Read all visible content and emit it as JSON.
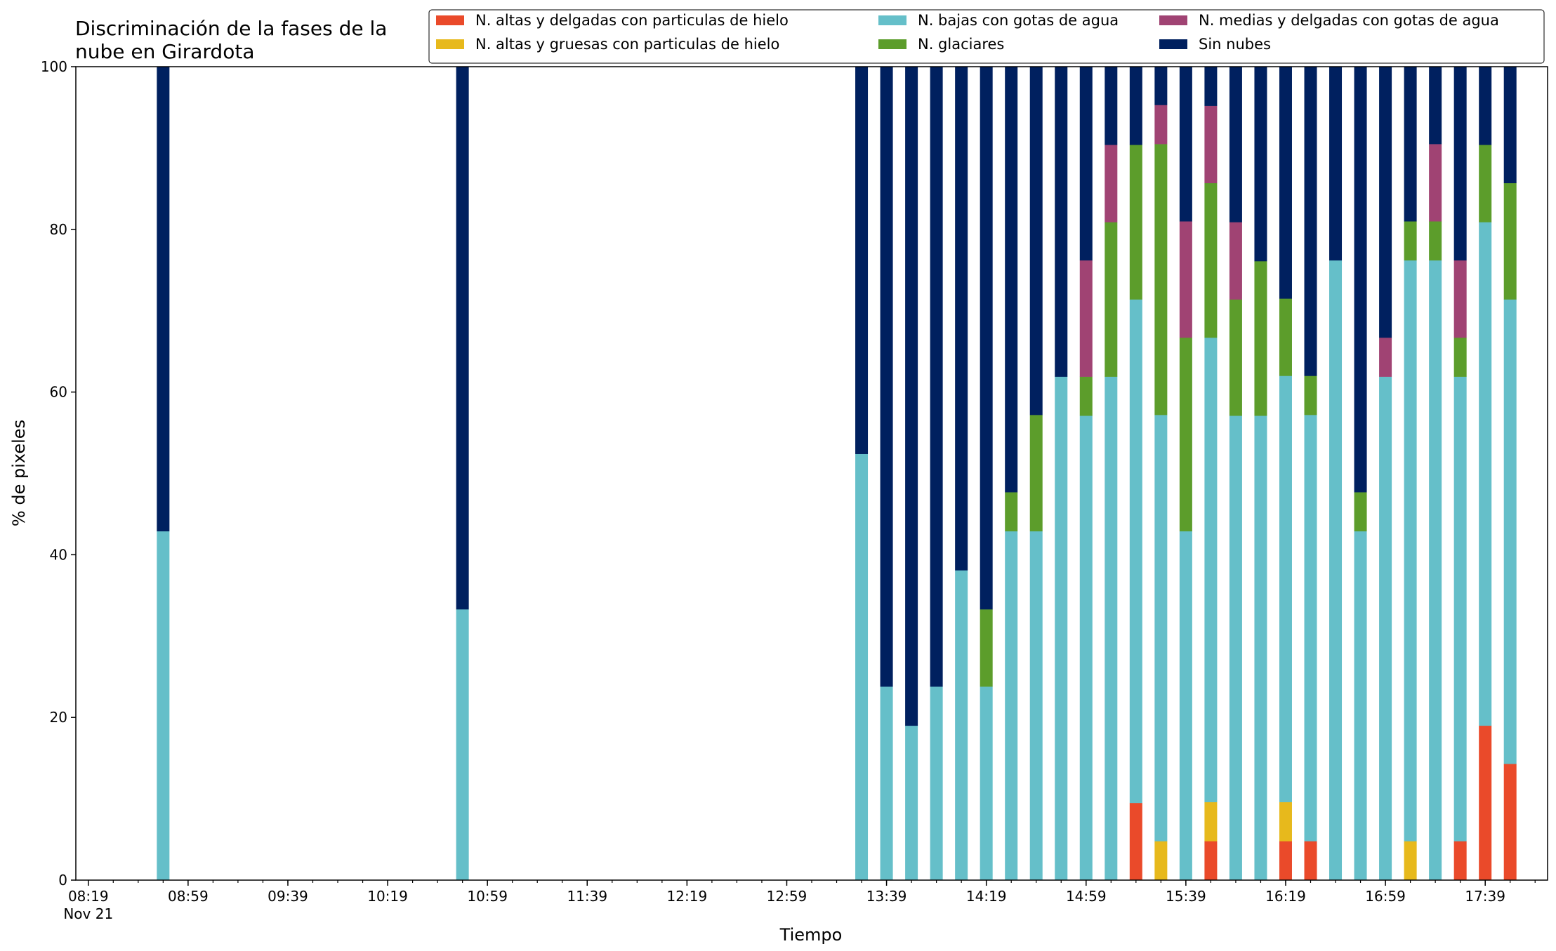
{
  "chart_data": {
    "type": "bar",
    "stacked": true,
    "title": "Discriminación de la fases de la\nnube en Girardota",
    "xlabel": "Tiempo",
    "ylabel": "% de pixeles",
    "ylim": [
      0,
      100
    ],
    "yticks": [
      "0",
      "20",
      "40",
      "60",
      "80",
      "100"
    ],
    "xlim": [
      "08:14",
      "18:04"
    ],
    "xtick_labels": [
      {
        "time": "08:19",
        "label": "08:19",
        "sublabel": "Nov 21"
      },
      {
        "time": "08:59",
        "label": "08:59"
      },
      {
        "time": "09:39",
        "label": "09:39"
      },
      {
        "time": "10:19",
        "label": "10:19"
      },
      {
        "time": "10:59",
        "label": "10:59"
      },
      {
        "time": "11:39",
        "label": "11:39"
      },
      {
        "time": "12:19",
        "label": "12:19"
      },
      {
        "time": "12:59",
        "label": "12:59"
      },
      {
        "time": "13:39",
        "label": "13:39"
      },
      {
        "time": "14:19",
        "label": "14:19"
      },
      {
        "time": "14:59",
        "label": "14:59"
      },
      {
        "time": "15:39",
        "label": "15:39"
      },
      {
        "time": "16:19",
        "label": "16:19"
      },
      {
        "time": "16:59",
        "label": "16:59"
      },
      {
        "time": "17:39",
        "label": "17:39"
      }
    ],
    "legend_position": "top-right",
    "series": [
      {
        "name": "N. altas y delgadas con particulas de hielo",
        "color": "#ea4a2a"
      },
      {
        "name": "N. altas y gruesas con particulas de hielo",
        "color": "#e7b91c"
      },
      {
        "name": "N. bajas con gotas de agua",
        "color": "#65bfc9"
      },
      {
        "name": "N. glaciares",
        "color": "#5c9d2b"
      },
      {
        "name": "N. medias y delgadas con gotas de agua",
        "color": "#a04373"
      },
      {
        "name": "Sin nubes",
        "color": "#00205f"
      }
    ],
    "legend_order": [
      0,
      1,
      2,
      3,
      4,
      5
    ],
    "x": [
      "08:49",
      "10:49",
      "13:29",
      "13:39",
      "13:49",
      "13:59",
      "14:09",
      "14:19",
      "14:29",
      "14:39",
      "14:49",
      "14:59",
      "15:09",
      "15:19",
      "15:29",
      "15:39",
      "15:49",
      "15:59",
      "16:09",
      "16:19",
      "16:29",
      "16:39",
      "16:49",
      "16:59",
      "17:09",
      "17:19",
      "17:29",
      "17:39",
      "17:49"
    ],
    "values": [
      [
        0,
        0,
        42.9,
        0,
        0,
        57.1
      ],
      [
        0,
        0,
        33.3,
        0,
        0,
        66.7
      ],
      [
        0,
        0,
        52.4,
        0,
        0,
        47.6
      ],
      [
        0,
        0,
        23.8,
        0,
        0,
        76.2
      ],
      [
        0,
        0,
        19.0,
        0,
        0,
        81.0
      ],
      [
        0,
        0,
        23.8,
        0,
        0,
        76.2
      ],
      [
        0,
        0,
        38.1,
        0,
        0,
        61.9
      ],
      [
        0,
        0,
        23.8,
        9.5,
        0,
        66.7
      ],
      [
        0,
        0,
        42.9,
        4.8,
        0,
        52.3
      ],
      [
        0,
        0,
        42.9,
        14.3,
        0,
        42.8
      ],
      [
        0,
        0,
        61.9,
        0,
        0,
        38.1
      ],
      [
        0,
        0,
        57.1,
        4.8,
        14.3,
        23.8
      ],
      [
        0,
        0,
        61.9,
        19.0,
        9.5,
        9.6
      ],
      [
        9.5,
        0,
        61.9,
        19.0,
        0,
        9.6
      ],
      [
        0,
        4.8,
        52.4,
        33.3,
        4.8,
        4.7
      ],
      [
        0,
        0,
        42.9,
        23.8,
        14.3,
        19.0
      ],
      [
        4.8,
        4.8,
        57.1,
        19.0,
        9.5,
        4.8
      ],
      [
        0,
        0,
        57.1,
        14.3,
        9.5,
        19.1
      ],
      [
        0,
        0,
        57.1,
        19.0,
        0,
        23.9
      ],
      [
        4.8,
        4.8,
        52.4,
        9.5,
        0,
        28.5
      ],
      [
        4.8,
        0,
        52.4,
        4.8,
        0,
        38.0
      ],
      [
        0,
        0,
        76.2,
        0,
        0,
        23.8
      ],
      [
        0,
        0,
        42.9,
        4.8,
        0,
        52.3
      ],
      [
        0,
        0,
        61.9,
        0,
        4.8,
        33.3
      ],
      [
        0,
        4.8,
        71.4,
        4.8,
        0,
        19.0
      ],
      [
        0,
        0,
        76.2,
        4.8,
        9.5,
        9.5
      ],
      [
        4.8,
        0,
        57.1,
        4.8,
        9.5,
        23.8
      ],
      [
        19.0,
        0,
        61.9,
        9.5,
        0,
        9.6
      ],
      [
        14.3,
        0,
        57.1,
        14.3,
        0,
        14.3
      ]
    ]
  }
}
